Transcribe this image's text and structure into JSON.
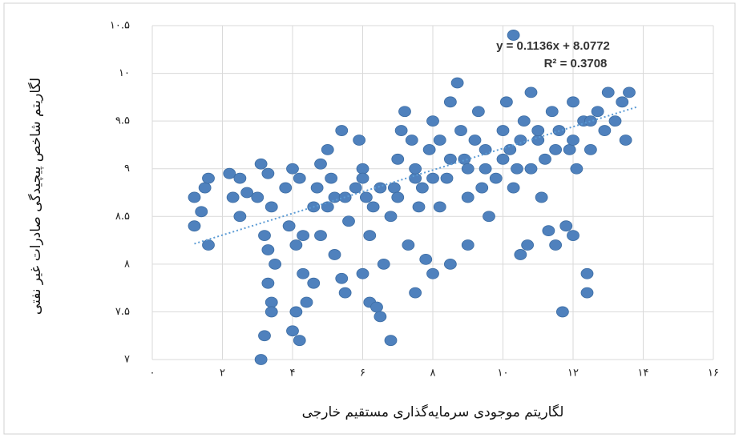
{
  "chart_data": {
    "type": "scatter",
    "x_label": "لگاریتم موجودی سرمایه‌گذاری مستقیم خارجی",
    "y_label": "لگاریتم شاخص پیچیدگی صادرات غیر نفتی",
    "color": "#4f81bd",
    "grid": true,
    "xlim": [
      0,
      16
    ],
    "ylim": [
      7,
      10.5
    ],
    "xticks": [
      {
        "value": 0,
        "label": "۰"
      },
      {
        "value": 2,
        "label": "۲"
      },
      {
        "value": 4,
        "label": "۴"
      },
      {
        "value": 6,
        "label": "۶"
      },
      {
        "value": 8,
        "label": "۸"
      },
      {
        "value": 10,
        "label": "۱۰"
      },
      {
        "value": 12,
        "label": "۱۲"
      },
      {
        "value": 14,
        "label": "۱۴"
      },
      {
        "value": 16,
        "label": "۱۶"
      }
    ],
    "yticks": [
      {
        "value": 7,
        "label": "۷"
      },
      {
        "value": 7.5,
        "label": "۷.۵"
      },
      {
        "value": 8,
        "label": "۸"
      },
      {
        "value": 8.5,
        "label": "۸.۵"
      },
      {
        "value": 9,
        "label": "۹"
      },
      {
        "value": 9.5,
        "label": "۹.۵"
      },
      {
        "value": 10,
        "label": "۱۰"
      },
      {
        "value": 10.5,
        "label": "۱۰.۵"
      }
    ],
    "trendline": {
      "equation": "y = 0.1136x + 8.0772",
      "r2": "R² = 0.3708",
      "slope": 0.1136,
      "intercept": 8.0772,
      "x": [
        1.2,
        13.8
      ]
    },
    "x": [
      1.2,
      1.4,
      1.5,
      1.6,
      1.2,
      1.6,
      2.2,
      2.5,
      2.7,
      2.3,
      2.5,
      3,
      3.1,
      3.3,
      3.4,
      3.2,
      3.3,
      3.3,
      3.4,
      3.4,
      3.2,
      3.1,
      3.5,
      3.8,
      4,
      4.2,
      3.9,
      4.1,
      4.3,
      4.3,
      4.1,
      4,
      4.2,
      4.4,
      4.6,
      4.6,
      4.7,
      4.8,
      5,
      5.1,
      5.2,
      5.4,
      5.2,
      5.4,
      5.6,
      5.8,
      5.9,
      6,
      6.1,
      6.2,
      6,
      6.2,
      6.4,
      6.5,
      6.6,
      6.8,
      6.9,
      7,
      7.1,
      7.2,
      7.4,
      7.5,
      7.6,
      7.3,
      7.8,
      7.9,
      8,
      8.2,
      8.4,
      8.5,
      8.7,
      8.8,
      8.9,
      9,
      9.2,
      9.3,
      9.5,
      9.6,
      9.8,
      10,
      10.1,
      10.2,
      10.3,
      10.4,
      10.6,
      10.8,
      11,
      11.1,
      11.2,
      11.4,
      11.6,
      11.8,
      11.9,
      12,
      12.1,
      12.3,
      12.4,
      12.4,
      12.5,
      12.7,
      12.9,
      13,
      13.2,
      13.4,
      13.6,
      13.5,
      11.3,
      11.5,
      11.7,
      12,
      10.5,
      10.7,
      9,
      8.5,
      8,
      7.5,
      6.8,
      5.5,
      4.8,
      10.3,
      5,
      5.5,
      6,
      6.5,
      7,
      7.5,
      8,
      8.5,
      9,
      9.5,
      10,
      10.5,
      11,
      11.5,
      12,
      12.5,
      8.2,
      9.4,
      10.8,
      6.3,
      7.7
    ],
    "y": [
      8.7,
      8.55,
      8.8,
      8.9,
      8.4,
      8.2,
      8.95,
      8.9,
      8.75,
      8.7,
      8.5,
      8.7,
      9.05,
      8.95,
      8.6,
      8.3,
      8.15,
      7.8,
      7.6,
      7.5,
      7.25,
      7,
      8,
      8.8,
      9,
      8.9,
      8.4,
      8.2,
      8.3,
      7.9,
      7.5,
      7.3,
      7.2,
      7.6,
      7.8,
      8.6,
      8.8,
      9.05,
      9.2,
      8.9,
      8.7,
      9.4,
      8.1,
      7.85,
      8.45,
      8.8,
      9.3,
      9,
      8.7,
      8.3,
      7.9,
      7.6,
      7.55,
      7.45,
      8,
      8.5,
      8.8,
      9.1,
      9.4,
      9.6,
      9.3,
      8.9,
      8.6,
      8.2,
      8.05,
      9.2,
      9.5,
      9.3,
      8.9,
      9.7,
      9.9,
      9.4,
      9.1,
      8.7,
      9.3,
      9.6,
      9,
      8.5,
      8.9,
      9.4,
      9.7,
      9.2,
      8.8,
      9,
      9.5,
      9.8,
      9.3,
      8.7,
      9.1,
      9.6,
      9.4,
      8.4,
      9.2,
      9.7,
      9,
      9.5,
      7.9,
      7.7,
      9.2,
      9.6,
      9.4,
      9.8,
      9.5,
      9.7,
      9.8,
      9.3,
      8.35,
      8.2,
      7.5,
      8.3,
      8.1,
      8.2,
      8.2,
      8,
      7.9,
      7.7,
      7.2,
      7.7,
      8.3,
      10.4,
      8.6,
      8.7,
      8.9,
      8.8,
      8.7,
      9,
      8.9,
      9.1,
      9,
      9.2,
      9.1,
      9.3,
      9.4,
      9.2,
      9.3,
      9.5,
      8.6,
      8.8,
      9,
      8.6,
      8.8
    ]
  }
}
